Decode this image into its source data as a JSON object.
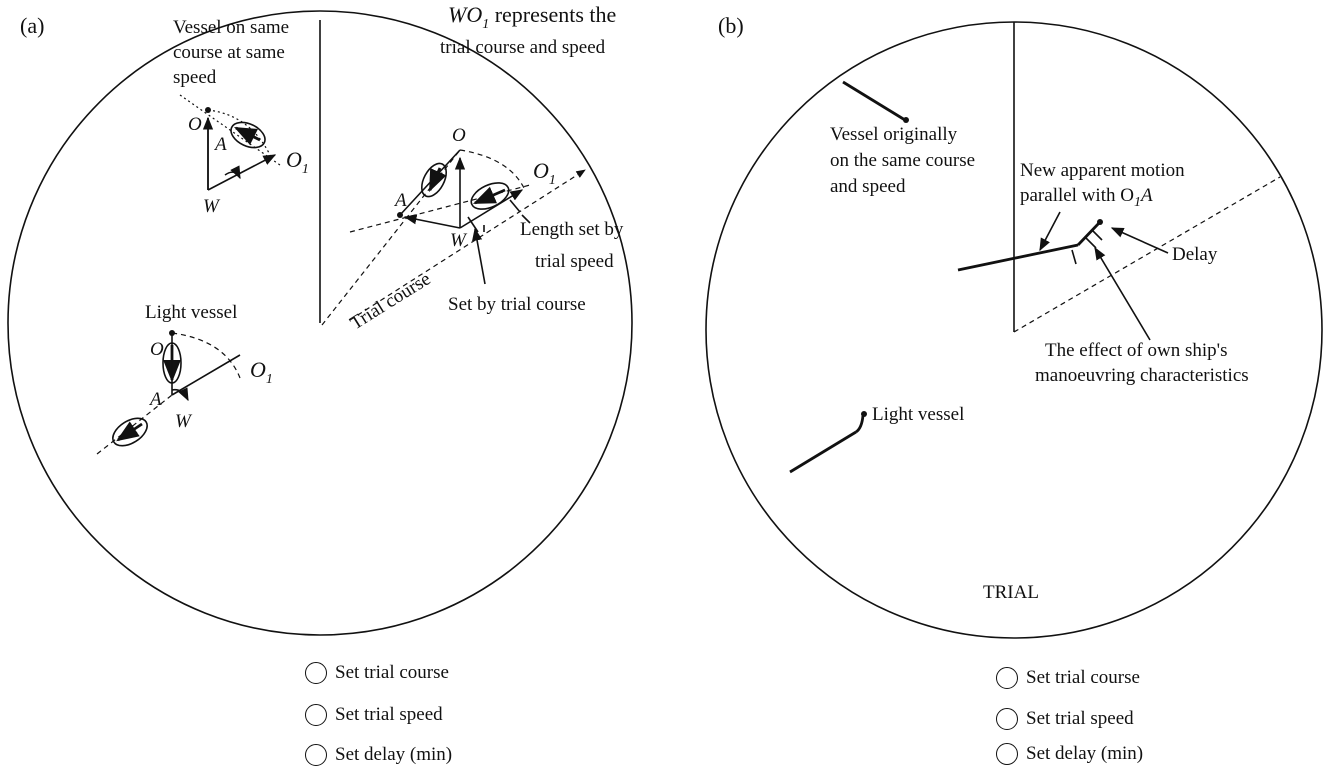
{
  "panel_a": {
    "tag": "(a)",
    "labels": {
      "vessel_same": [
        "Vessel on same",
        "course at same",
        "speed"
      ],
      "wo1_main": "WO",
      "wo1_sub": "1",
      "wo1_rest": " represents the",
      "wo1_line2": "trial course and speed",
      "light_vessel": "Light vessel",
      "length_set": [
        "Length set by",
        "trial speed"
      ],
      "set_by_course": "Set by trial course",
      "trial_course": "Trial course",
      "O": "O",
      "A": "A",
      "W": "W",
      "O1_main": "O",
      "O1_sub": "1"
    },
    "controls": [
      "Set trial course",
      "Set trial speed",
      "Set delay (min)"
    ]
  },
  "panel_b": {
    "tag": "(b)",
    "labels": {
      "vessel_orig": [
        "Vessel originally",
        "on the same course",
        "and speed"
      ],
      "new_apparent": [
        "New apparent motion",
        "parallel with O"
      ],
      "new_apparent_sub": "1",
      "new_apparent_end": "A",
      "delay": "Delay",
      "effect": [
        "The effect of own ship's",
        "manoeuvring characteristics"
      ],
      "light_vessel": "Light vessel",
      "trial": "TRIAL"
    },
    "controls": [
      "Set trial course",
      "Set trial speed",
      "Set delay (min)"
    ]
  }
}
